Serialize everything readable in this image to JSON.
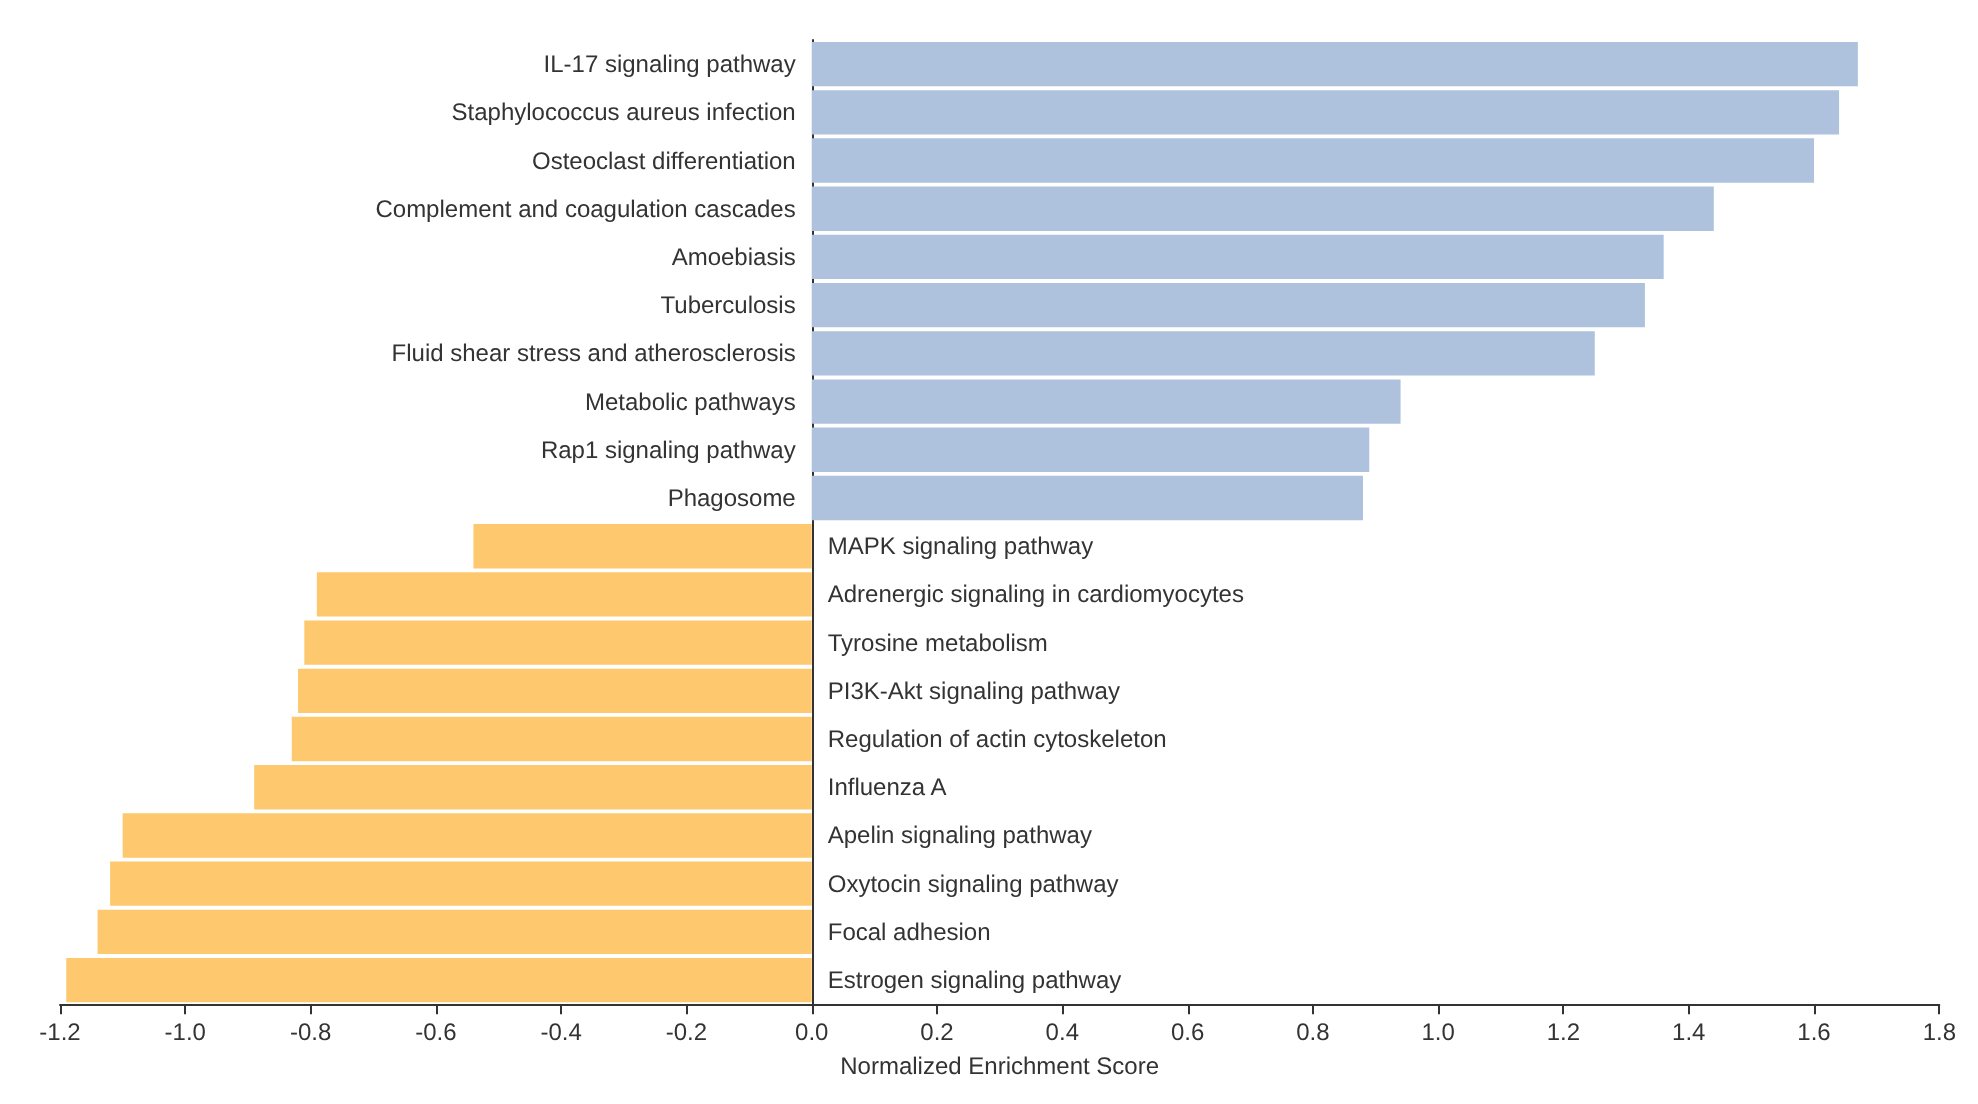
{
  "chart_data": {
    "type": "bar",
    "orientation": "horizontal",
    "xlabel": "Normalized Enrichment Score",
    "categories": [
      "IL-17 signaling pathway",
      "Staphylococcus aureus infection",
      "Osteoclast differentiation",
      "Complement and coagulation cascades",
      "Amoebiasis",
      "Tuberculosis",
      "Fluid shear stress and atherosclerosis",
      "Metabolic pathways",
      "Rap1 signaling pathway",
      "Phagosome",
      "MAPK signaling pathway",
      "Adrenergic signaling in cardiomyocytes",
      "Tyrosine metabolism",
      "PI3K-Akt signaling pathway",
      "Regulation of actin cytoskeleton",
      "Influenza A",
      "Apelin signaling pathway",
      "Oxytocin signaling pathway",
      "Focal adhesion",
      "Estrogen signaling pathway"
    ],
    "values": [
      1.67,
      1.64,
      1.6,
      1.44,
      1.36,
      1.33,
      1.25,
      0.94,
      0.89,
      0.88,
      -0.54,
      -0.79,
      -0.81,
      -0.82,
      -0.83,
      -0.89,
      -1.1,
      -1.12,
      -1.14,
      -1.19
    ],
    "colors": [
      "#aec2de",
      "#aec2de",
      "#aec2de",
      "#aec2de",
      "#aec2de",
      "#aec2de",
      "#aec2de",
      "#aec2de",
      "#aec2de",
      "#aec2de",
      "#fdc86e",
      "#fdc86e",
      "#fdc86e",
      "#fdc86e",
      "#fdc86e",
      "#fdc86e",
      "#fdc86e",
      "#fdc86e",
      "#fdc86e",
      "#fdc86e"
    ],
    "xlim": [
      -1.2,
      1.8
    ],
    "xticks": [
      -1.2,
      {
        "value": -1,
        "label": "-1.0"
      },
      -0.8,
      -0.6,
      -0.4,
      -0.2,
      {
        "value": 0,
        "label": "0.0"
      },
      0.2,
      0.4,
      0.6,
      0.8,
      {
        "value": 1,
        "label": "1.0"
      },
      1.2,
      1.4,
      1.6,
      1.8
    ],
    "grid": false
  }
}
